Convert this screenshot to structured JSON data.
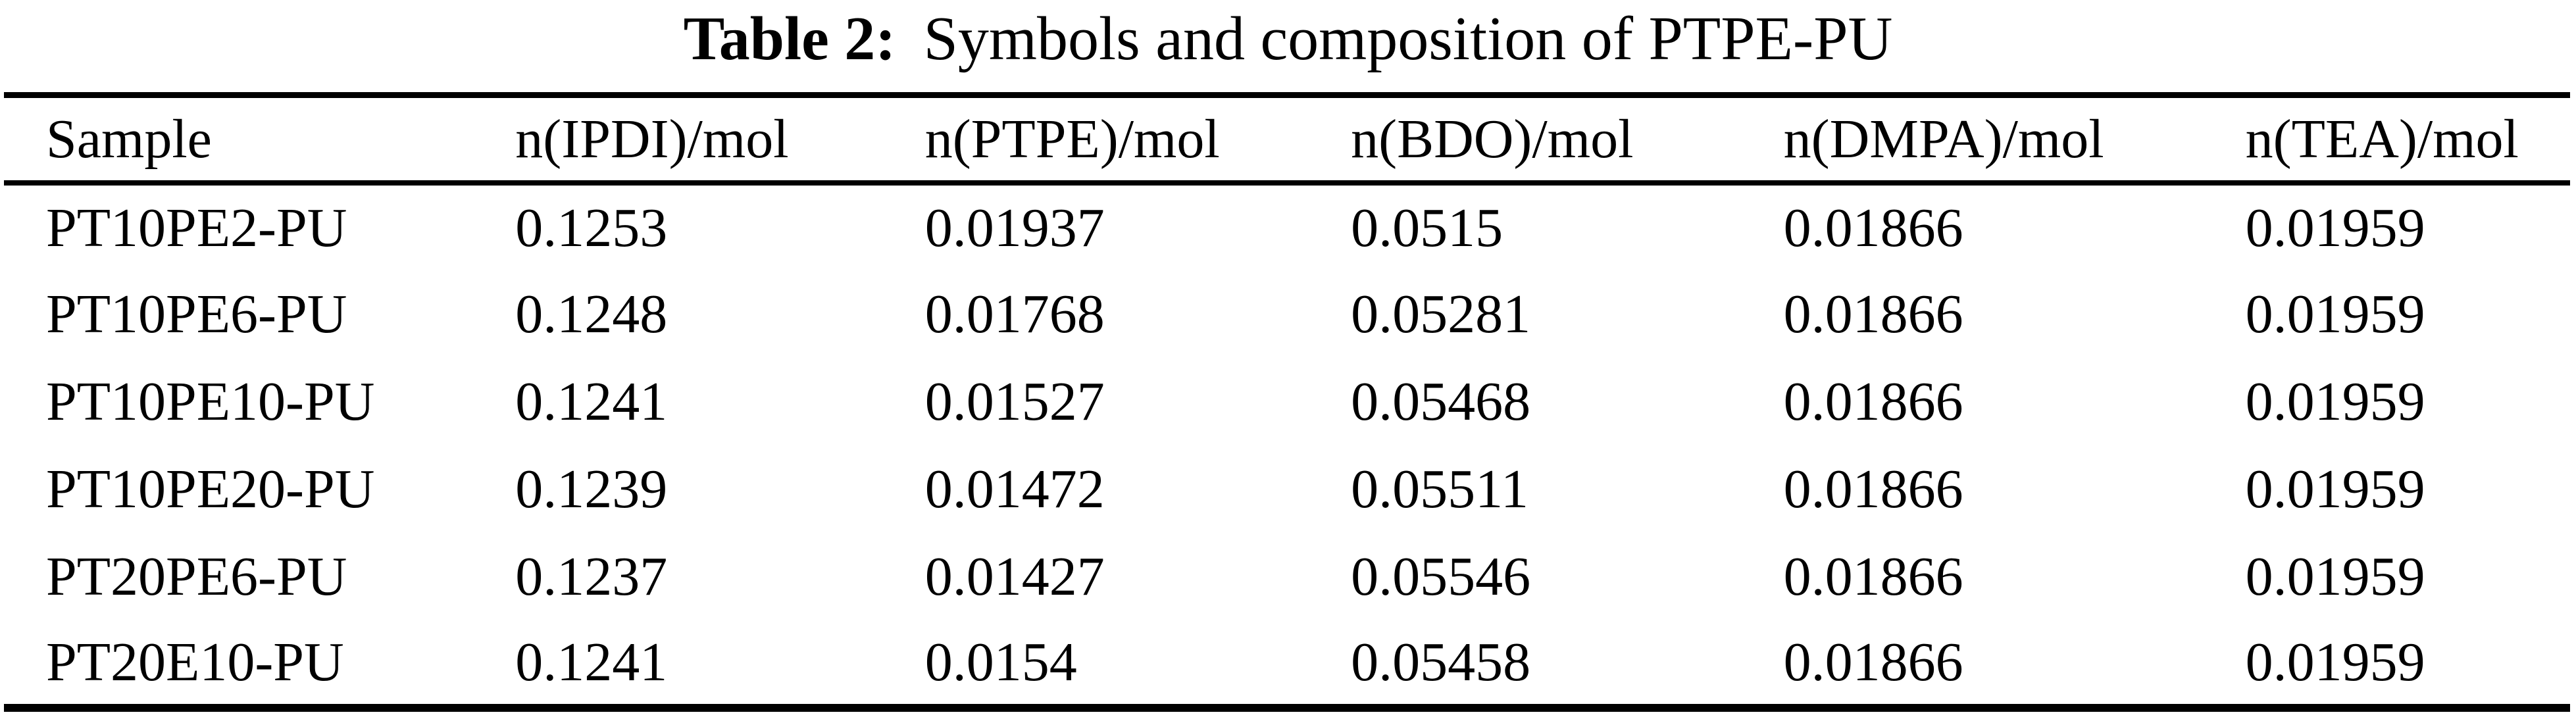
{
  "caption": {
    "label": "Table 2:",
    "text": "Symbols and composition of PTPE-PU"
  },
  "table": {
    "columns": [
      "Sample",
      "n(IPDI)/mol",
      "n(PTPE)/mol",
      "n(BDO)/mol",
      "n(DMPA)/mol",
      "n(TEA)/mol"
    ],
    "rows": [
      [
        "PT10PE2-PU",
        "0.1253",
        "0.01937",
        "0.0515",
        "0.01866",
        "0.01959"
      ],
      [
        "PT10PE6-PU",
        "0.1248",
        "0.01768",
        "0.05281",
        "0.01866",
        "0.01959"
      ],
      [
        "PT10PE10-PU",
        "0.1241",
        "0.01527",
        "0.05468",
        "0.01866",
        "0.01959"
      ],
      [
        "PT10PE20-PU",
        "0.1239",
        "0.01472",
        "0.05511",
        "0.01866",
        "0.01959"
      ],
      [
        "PT20PE6-PU",
        "0.1237",
        "0.01427",
        "0.05546",
        "0.01866",
        "0.01959"
      ],
      [
        "PT20E10-PU",
        "0.1241",
        "0.0154",
        "0.05458",
        "0.01866",
        "0.01959"
      ]
    ]
  },
  "colors": {
    "text": "#000000",
    "background": "#ffffff",
    "rule": "#000000"
  }
}
